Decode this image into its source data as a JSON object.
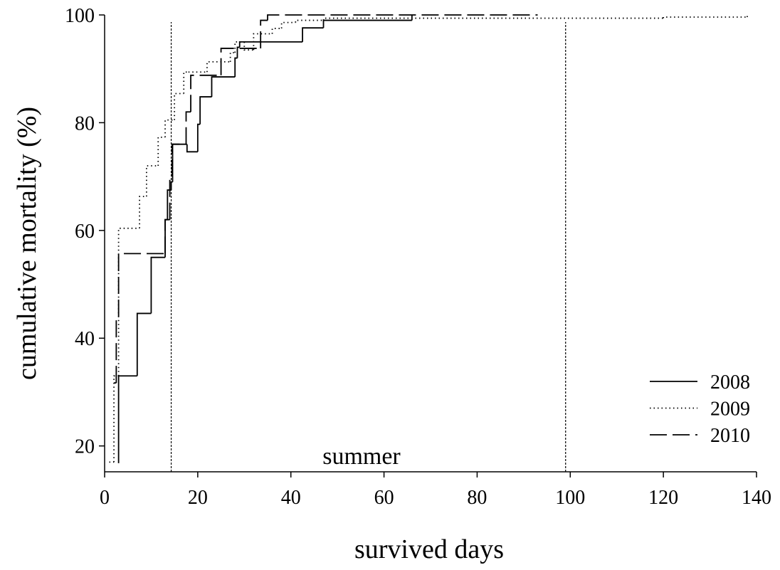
{
  "chart_data": {
    "type": "step",
    "x_label": "survived days",
    "y_label": "cumulative mortality (%)",
    "annotation": "summer",
    "vlines": [
      14.3,
      99
    ],
    "xlim": [
      0,
      140
    ],
    "xticks": [
      0,
      20,
      40,
      60,
      80,
      100,
      120,
      140
    ],
    "ylim": [
      15.2,
      100
    ],
    "yticks": [
      20,
      40,
      60,
      80,
      100
    ],
    "legend": "lower right",
    "series": [
      {
        "name": "2008",
        "color": "#000000",
        "line_style": "solid",
        "x": [
          3,
          3,
          7,
          10,
          13,
          13.5,
          14.3,
          14.6,
          17.7,
          20,
          20.5,
          23,
          28,
          28.5,
          29,
          34,
          42.5,
          47,
          66
        ],
        "values": [
          16.8,
          33,
          44.6,
          55,
          62,
          67.5,
          69,
          76,
          74.6,
          79.7,
          84.8,
          88.5,
          92,
          94,
          95,
          95,
          97.6,
          99,
          100
        ]
      },
      {
        "name": "2009",
        "color": "#000000",
        "line_style": "dotted",
        "x": [
          1,
          2,
          3,
          7.5,
          9,
          11.5,
          13,
          15,
          17,
          18,
          22,
          27,
          28,
          30,
          32,
          36,
          38,
          41,
          47,
          120,
          138
        ],
        "values": [
          17,
          33,
          60.4,
          66.3,
          72,
          77.3,
          80.5,
          85.4,
          89.4,
          89.4,
          91.3,
          93,
          95,
          93.5,
          96.5,
          97.5,
          98.6,
          99,
          99.4,
          99.6,
          100
        ]
      },
      {
        "name": "2010",
        "color": "#000000",
        "line_style": "dashed",
        "x": [
          2,
          2.5,
          3,
          13,
          14,
          14.5,
          17.5,
          18.5,
          25,
          33.5,
          35,
          93
        ],
        "values": [
          31.7,
          44,
          55.7,
          62,
          70,
          76,
          82,
          88.8,
          93.8,
          99,
          100,
          100
        ]
      }
    ]
  }
}
